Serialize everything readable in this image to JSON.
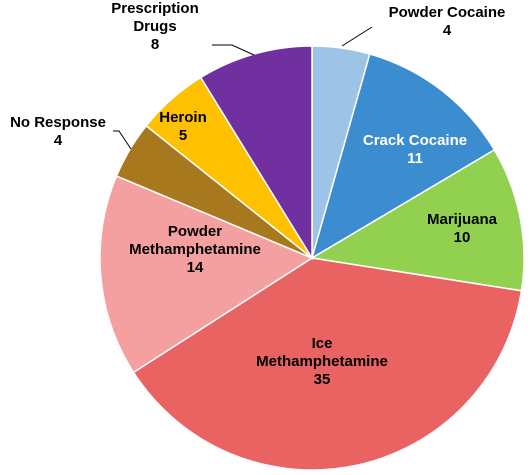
{
  "chart_data": {
    "type": "pie",
    "categories": [
      "Powder Cocaine",
      "Crack Cocaine",
      "Marijuana",
      "Ice Methamphetamine",
      "Powder Methamphetamine",
      "No Response",
      "Heroin",
      "Controlled Prescription Drugs"
    ],
    "values": [
      4,
      11,
      10,
      35,
      14,
      4,
      5,
      8
    ],
    "colors": [
      "#9dc3e6",
      "#3c8dcf",
      "#92d050",
      "#e96363",
      "#f4a0a0",
      "#a8781e",
      "#ffc000",
      "#7030a0"
    ],
    "label_colors": [
      "#000000",
      "#ffffff",
      "#000000",
      "#000000",
      "#000000",
      "#000000",
      "#000000",
      "#000000"
    ],
    "labels": [
      {
        "name": "Powder Cocaine",
        "value": "4"
      },
      {
        "name": "Crack Cocaine",
        "value": "11"
      },
      {
        "name": "Marijuana",
        "value": "10"
      },
      {
        "name": "Ice\nMethamphetamine",
        "value": "35"
      },
      {
        "name": "Powder\nMethamphetamine",
        "value": "14"
      },
      {
        "name": "No Response",
        "value": "4"
      },
      {
        "name": "Heroin",
        "value": "5"
      },
      {
        "name": "Controlled\nPrescription\nDrugs",
        "value": "8"
      }
    ],
    "start_angle": "12 o'clock",
    "direction": "clockwise",
    "legend": "none"
  }
}
